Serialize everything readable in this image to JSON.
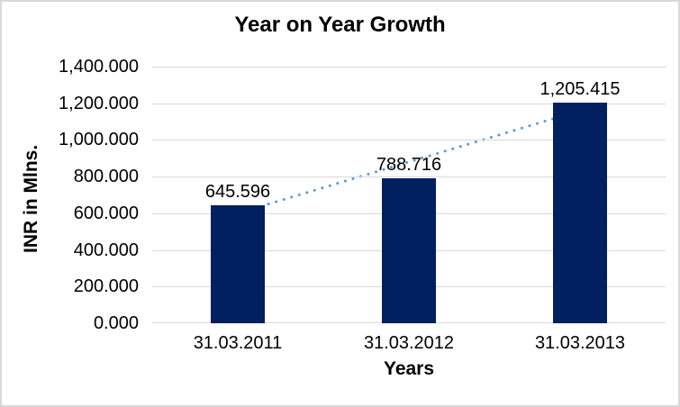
{
  "chart_data": {
    "type": "bar",
    "title": "Year on Year Growth",
    "xlabel": "Years",
    "ylabel": "INR in Mlns.",
    "categories": [
      "31.03.2011",
      "31.03.2012",
      "31.03.2013"
    ],
    "values": [
      645.596,
      788.716,
      1205.415
    ],
    "data_labels": [
      "645.596",
      "788.716",
      "1,205.415"
    ],
    "ylim": [
      0,
      1400
    ],
    "ytick_step": 200,
    "ytick_labels": [
      "0.000",
      "200.000",
      "400.000",
      "600.000",
      "800.000",
      "1,000.000",
      "1,200.000",
      "1,400.000"
    ],
    "grid": true,
    "legend": "none",
    "bar_color": "#002060",
    "gridline_color": "#D9D9D9",
    "border_color": "#D9D9D9",
    "text_color": "#000000",
    "trendline": {
      "type": "linear",
      "style": "dotted",
      "color": "#5B9BD5",
      "start_value": 600.1,
      "end_value": 1159.8
    }
  }
}
